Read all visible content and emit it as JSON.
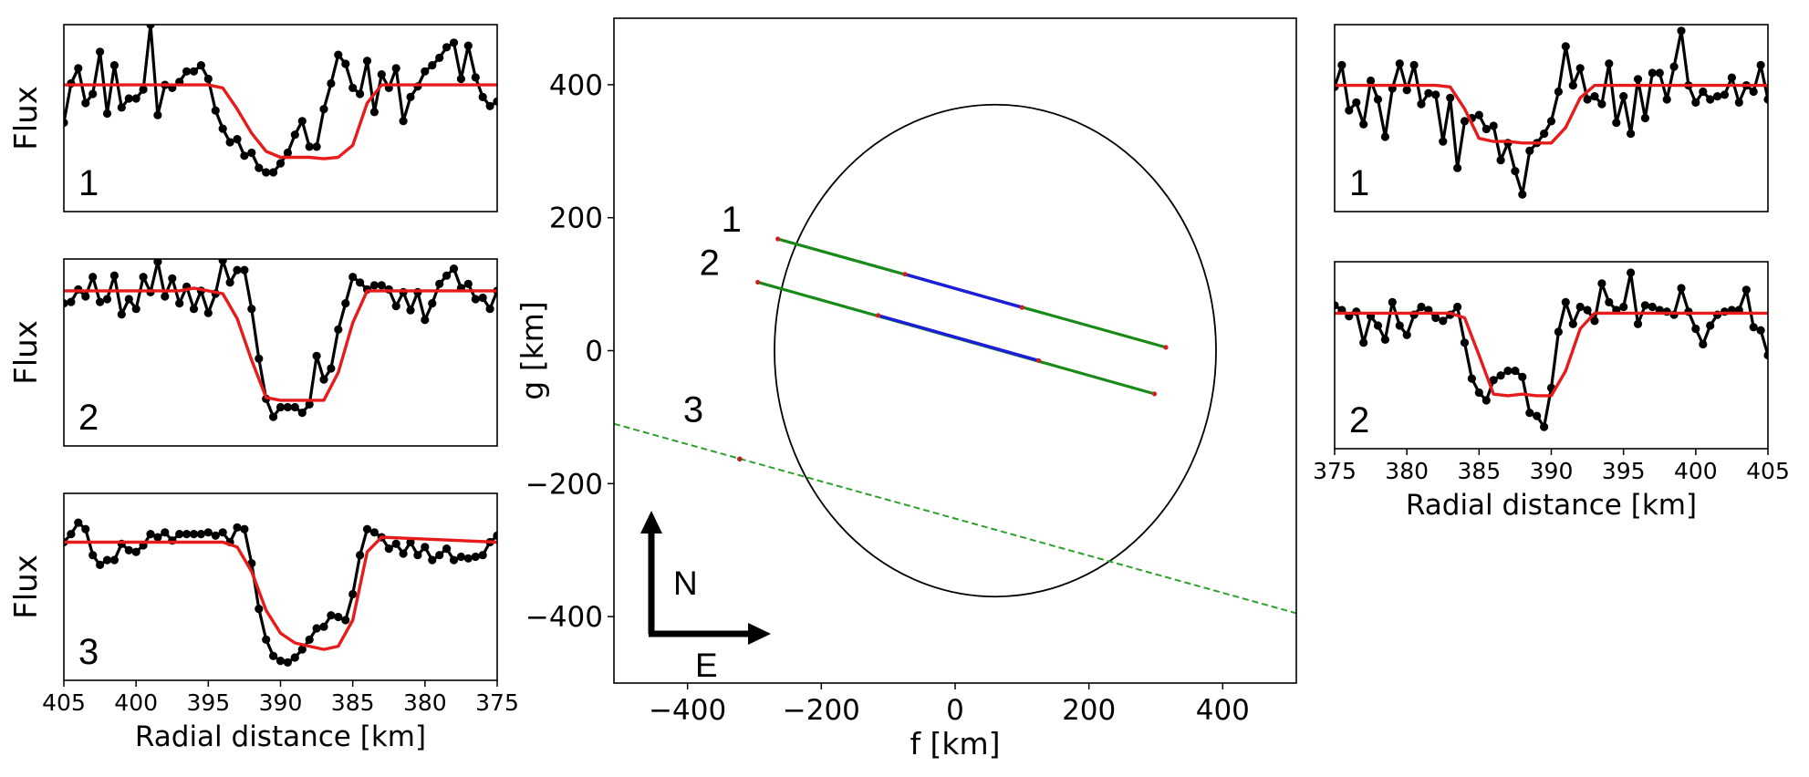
{
  "chart_data": [
    {
      "id": "left1",
      "type": "line",
      "xlabel": "",
      "ylabel": "Flux",
      "xlim": [
        405,
        375
      ],
      "ylim": [
        -0.12,
        1.12
      ],
      "x_ticks": [],
      "x_tick_labels": [],
      "panel_label": "1",
      "series": [
        {
          "role": "observed",
          "color": "#000000",
          "x": [
            405.0,
            404.5,
            404.0,
            403.5,
            403.0,
            402.5,
            402.0,
            401.5,
            401.0,
            400.5,
            400.0,
            399.5,
            399.0,
            398.5,
            398.0,
            397.5,
            397.0,
            396.5,
            396.0,
            395.5,
            395.0,
            394.5,
            394.0,
            393.5,
            393.0,
            392.5,
            392.0,
            391.5,
            391.0,
            390.5,
            390.0,
            389.5,
            389.0,
            388.5,
            388.0,
            387.5,
            387.0,
            386.5,
            386.0,
            385.5,
            385.0,
            384.5,
            384.0,
            383.5,
            383.0,
            382.5,
            382.0,
            381.5,
            381.0,
            380.5,
            380.0,
            379.5,
            379.0,
            378.5,
            378.0,
            377.5,
            377.0,
            376.5,
            376.0,
            375.5,
            375.0
          ],
          "y": [
            0.47,
            0.73,
            0.83,
            0.6,
            0.66,
            0.94,
            0.53,
            0.85,
            0.57,
            0.63,
            0.63,
            0.69,
            1.12,
            0.52,
            0.72,
            0.7,
            0.74,
            0.81,
            0.81,
            0.85,
            0.76,
            0.55,
            0.43,
            0.34,
            0.36,
            0.25,
            0.27,
            0.17,
            0.14,
            0.14,
            0.2,
            0.27,
            0.39,
            0.48,
            0.31,
            0.31,
            0.56,
            0.73,
            0.92,
            0.86,
            0.7,
            0.66,
            0.88,
            0.54,
            0.79,
            0.7,
            0.83,
            0.48,
            0.64,
            0.71,
            0.81,
            0.85,
            0.9,
            0.97,
            1.0,
            0.76,
            0.98,
            0.77,
            0.64,
            0.58,
            0.61
          ]
        },
        {
          "role": "model",
          "color": "#e81b1b",
          "x": [
            405,
            396,
            395,
            394,
            393,
            392,
            391,
            390,
            389,
            388,
            387,
            386,
            385,
            384,
            383,
            375
          ],
          "y": [
            0.72,
            0.72,
            0.72,
            0.7,
            0.56,
            0.4,
            0.28,
            0.24,
            0.24,
            0.24,
            0.23,
            0.24,
            0.32,
            0.6,
            0.72,
            0.72
          ]
        }
      ]
    },
    {
      "id": "left2",
      "type": "line",
      "xlabel": "",
      "ylabel": "Flux",
      "xlim": [
        405,
        375
      ],
      "ylim": [
        -0.15,
        1.2
      ],
      "x_ticks": [],
      "x_tick_labels": [],
      "panel_label": "2",
      "series": [
        {
          "role": "observed",
          "color": "#000000",
          "x": [
            405.0,
            404.5,
            404.0,
            403.5,
            403.0,
            402.5,
            402.0,
            401.5,
            401.0,
            400.5,
            400.0,
            399.5,
            399.0,
            398.5,
            398.0,
            397.5,
            397.0,
            396.5,
            396.0,
            395.5,
            395.0,
            394.5,
            394.0,
            393.5,
            393.0,
            392.5,
            392.0,
            391.5,
            391.0,
            390.5,
            390.0,
            389.5,
            389.0,
            388.5,
            388.0,
            387.5,
            387.0,
            386.5,
            386.0,
            385.5,
            385.0,
            384.5,
            384.0,
            383.5,
            383.0,
            382.5,
            382.0,
            381.5,
            381.0,
            380.5,
            380.0,
            379.5,
            379.0,
            378.5,
            378.0,
            377.5,
            377.0,
            376.5,
            376.0,
            375.5,
            375.0
          ],
          "y": [
            0.88,
            0.89,
            0.98,
            0.93,
            1.07,
            0.89,
            0.91,
            1.08,
            0.8,
            0.91,
            0.84,
            1.07,
            0.96,
            1.18,
            0.93,
            1.06,
            0.88,
            1.0,
            0.84,
            0.97,
            0.81,
            0.95,
            1.19,
            1.03,
            1.12,
            1.12,
            0.84,
            0.48,
            0.19,
            0.06,
            0.13,
            0.13,
            0.13,
            0.09,
            0.15,
            0.5,
            0.33,
            0.41,
            0.69,
            0.88,
            1.07,
            1.03,
            0.98,
            1.01,
            1.01,
            0.98,
            0.86,
            0.96,
            0.83,
            0.96,
            0.76,
            0.88,
            1.02,
            1.08,
            1.13,
            0.99,
            1.02,
            0.91,
            0.92,
            0.84,
            0.97
          ]
        },
        {
          "role": "model",
          "color": "#e81b1b",
          "x": [
            405,
            397,
            396,
            395,
            394,
            393,
            392,
            391,
            390,
            389,
            388,
            387,
            386,
            385,
            384,
            375
          ],
          "y": [
            0.97,
            0.97,
            0.99,
            0.97,
            0.95,
            0.77,
            0.47,
            0.2,
            0.18,
            0.18,
            0.18,
            0.18,
            0.38,
            0.74,
            0.97,
            0.97
          ]
        }
      ]
    },
    {
      "id": "left3",
      "type": "line",
      "xlabel": "Radial distance [km]",
      "ylabel": "Flux",
      "xlim": [
        405,
        375
      ],
      "ylim": [
        -0.05,
        1.1
      ],
      "x_ticks": [
        405,
        400,
        395,
        390,
        385,
        380,
        375
      ],
      "x_tick_labels": [
        "405",
        "400",
        "395",
        "390",
        "385",
        "380",
        "375"
      ],
      "panel_label": "3",
      "series": [
        {
          "role": "observed",
          "color": "#000000",
          "x": [
            405.0,
            404.5,
            404.0,
            403.5,
            403.0,
            402.5,
            402.0,
            401.5,
            401.0,
            400.5,
            400.0,
            399.5,
            399.0,
            398.5,
            398.0,
            397.5,
            397.0,
            396.5,
            396.0,
            395.5,
            395.0,
            394.5,
            394.0,
            393.5,
            393.0,
            392.5,
            392.0,
            391.5,
            391.0,
            390.5,
            390.0,
            389.5,
            389.0,
            388.5,
            388.0,
            387.5,
            387.0,
            386.5,
            386.0,
            385.5,
            385.0,
            384.5,
            384.0,
            383.5,
            383.0,
            382.5,
            382.0,
            381.5,
            381.0,
            380.5,
            380.0,
            379.5,
            379.0,
            378.5,
            378.0,
            377.5,
            377.0,
            376.5,
            376.0,
            375.5,
            375.0
          ],
          "y": [
            0.8,
            0.85,
            0.92,
            0.88,
            0.72,
            0.66,
            0.69,
            0.69,
            0.79,
            0.75,
            0.74,
            0.78,
            0.85,
            0.83,
            0.86,
            0.81,
            0.85,
            0.85,
            0.85,
            0.85,
            0.86,
            0.84,
            0.86,
            0.8,
            0.89,
            0.88,
            0.67,
            0.39,
            0.2,
            0.1,
            0.07,
            0.06,
            0.09,
            0.14,
            0.2,
            0.27,
            0.28,
            0.35,
            0.34,
            0.32,
            0.48,
            0.72,
            0.88,
            0.86,
            0.83,
            0.76,
            0.79,
            0.73,
            0.8,
            0.72,
            0.77,
            0.69,
            0.72,
            0.76,
            0.69,
            0.71,
            0.7,
            0.71,
            0.72,
            0.8,
            0.84
          ]
        },
        {
          "role": "model",
          "color": "#e81b1b",
          "x": [
            405,
            396,
            395,
            394,
            393,
            392,
            391,
            390,
            389,
            388,
            387,
            386,
            385,
            384,
            383,
            375
          ],
          "y": [
            0.8,
            0.8,
            0.8,
            0.8,
            0.77,
            0.62,
            0.38,
            0.24,
            0.18,
            0.16,
            0.14,
            0.16,
            0.32,
            0.74,
            0.83,
            0.8
          ]
        }
      ]
    },
    {
      "id": "right1",
      "type": "line",
      "xlabel": "",
      "ylabel": "",
      "xlim": [
        375,
        405
      ],
      "ylim": [
        -0.1,
        1.1
      ],
      "x_ticks": [],
      "x_tick_labels": [],
      "panel_label": "1",
      "series": [
        {
          "role": "observed",
          "color": "#000000",
          "x": [
            375.0,
            375.5,
            376.0,
            376.5,
            377.0,
            377.5,
            378.0,
            378.5,
            379.0,
            379.5,
            380.0,
            380.5,
            381.0,
            381.5,
            382.0,
            382.5,
            383.0,
            383.5,
            384.0,
            384.5,
            385.0,
            385.5,
            386.0,
            386.5,
            387.0,
            387.5,
            388.0,
            388.5,
            389.0,
            389.5,
            390.0,
            390.5,
            391.0,
            391.5,
            392.0,
            392.5,
            393.0,
            393.5,
            394.0,
            394.5,
            395.0,
            395.5,
            396.0,
            396.5,
            397.0,
            397.5,
            398.0,
            398.5,
            399.0,
            399.5,
            400.0,
            400.5,
            401.0,
            401.5,
            402.0,
            402.5,
            403.0,
            403.5,
            404.0,
            404.5,
            405.0
          ],
          "y": [
            0.7,
            0.84,
            0.55,
            0.6,
            0.46,
            0.74,
            0.62,
            0.38,
            0.69,
            0.85,
            0.68,
            0.84,
            0.59,
            0.66,
            0.65,
            0.35,
            0.63,
            0.18,
            0.48,
            0.5,
            0.52,
            0.43,
            0.45,
            0.23,
            0.34,
            0.16,
            0.01,
            0.29,
            0.34,
            0.4,
            0.48,
            0.67,
            0.96,
            0.71,
            0.82,
            0.62,
            0.64,
            0.59,
            0.85,
            0.47,
            0.64,
            0.4,
            0.75,
            0.5,
            0.79,
            0.79,
            0.62,
            0.83,
            1.06,
            0.71,
            0.6,
            0.67,
            0.62,
            0.64,
            0.65,
            0.76,
            0.6,
            0.71,
            0.67,
            0.84,
            0.62
          ]
        },
        {
          "role": "model",
          "color": "#e81b1b",
          "x": [
            375,
            382,
            383,
            384,
            385,
            386,
            387,
            388,
            389,
            390,
            391,
            392,
            393,
            405
          ],
          "y": [
            0.71,
            0.71,
            0.7,
            0.56,
            0.37,
            0.35,
            0.35,
            0.34,
            0.34,
            0.34,
            0.44,
            0.63,
            0.71,
            0.71
          ]
        }
      ]
    },
    {
      "id": "right2",
      "type": "line",
      "xlabel": "Radial distance [km]",
      "ylabel": "",
      "xlim": [
        375,
        405
      ],
      "ylim": [
        -0.1,
        1.1
      ],
      "x_ticks": [
        375,
        380,
        385,
        390,
        395,
        400,
        405
      ],
      "x_tick_labels": [
        "375",
        "380",
        "385",
        "390",
        "395",
        "400",
        "405"
      ],
      "panel_label": "2",
      "series": [
        {
          "role": "observed",
          "color": "#000000",
          "x": [
            375.0,
            375.5,
            376.0,
            376.5,
            377.0,
            377.5,
            378.0,
            378.5,
            379.0,
            379.5,
            380.0,
            380.5,
            381.0,
            381.5,
            382.0,
            382.5,
            383.0,
            383.5,
            384.0,
            384.5,
            385.0,
            385.5,
            386.0,
            386.5,
            387.0,
            387.5,
            388.0,
            388.5,
            389.0,
            389.5,
            390.0,
            390.5,
            391.0,
            391.5,
            392.0,
            392.5,
            393.0,
            393.5,
            394.0,
            394.5,
            395.0,
            395.5,
            396.0,
            396.5,
            397.0,
            397.5,
            398.0,
            398.5,
            399.0,
            399.5,
            400.0,
            400.5,
            401.0,
            401.5,
            402.0,
            402.5,
            403.0,
            403.5,
            404.0,
            404.5,
            405.0
          ],
          "y": [
            0.82,
            0.79,
            0.75,
            0.78,
            0.58,
            0.75,
            0.69,
            0.6,
            0.84,
            0.69,
            0.63,
            0.76,
            0.81,
            0.79,
            0.74,
            0.72,
            0.76,
            0.81,
            0.58,
            0.35,
            0.26,
            0.21,
            0.34,
            0.37,
            0.4,
            0.4,
            0.36,
            0.13,
            0.11,
            0.04,
            0.29,
            0.65,
            0.84,
            0.7,
            0.81,
            0.79,
            0.72,
            0.96,
            0.84,
            0.79,
            0.81,
            1.03,
            0.7,
            0.82,
            0.81,
            0.79,
            0.78,
            0.76,
            0.93,
            0.78,
            0.67,
            0.57,
            0.69,
            0.76,
            0.78,
            0.79,
            0.79,
            0.92,
            0.68,
            0.66,
            0.5
          ]
        },
        {
          "role": "model",
          "color": "#e81b1b",
          "x": [
            375,
            383,
            384,
            385,
            386,
            387,
            388,
            389,
            390,
            391,
            392,
            393,
            405
          ],
          "y": [
            0.77,
            0.77,
            0.74,
            0.5,
            0.25,
            0.24,
            0.25,
            0.24,
            0.24,
            0.4,
            0.67,
            0.77,
            0.77
          ]
        }
      ]
    },
    {
      "id": "center",
      "type": "line",
      "xlabel": "f [km]",
      "ylabel": "g [km]",
      "xlim": [
        -510,
        510
      ],
      "ylim": [
        -500,
        500
      ],
      "x_ticks": [
        -400,
        -200,
        0,
        200,
        400
      ],
      "x_tick_labels": [
        "−400",
        "−200",
        "0",
        "200",
        "400"
      ],
      "y_ticks": [
        400,
        200,
        0,
        -200,
        -400
      ],
      "y_tick_labels": [
        "400",
        "200",
        "0",
        "−200",
        "−400"
      ],
      "ellipse": {
        "center": [
          60,
          0
        ],
        "semi_axes": [
          330,
          370
        ],
        "color": "#000000"
      },
      "chords": [
        {
          "label": "1",
          "from": [
            -265,
            168
          ],
          "to": [
            315,
            5
          ],
          "inner_from": [
            -75,
            115
          ],
          "inner_to": [
            100,
            65
          ],
          "color": "#178a17",
          "inner_color": "#1c1cdc"
        },
        {
          "label": "2",
          "from": [
            -295,
            103
          ],
          "to": [
            298,
            -65
          ],
          "inner_from": [
            -115,
            53
          ],
          "inner_to": [
            125,
            -15
          ],
          "color": "#178a17",
          "inner_color": "#1c1cdc"
        },
        {
          "label": "3",
          "from": [
            -510,
            -110
          ],
          "to": [
            510,
            -395
          ],
          "style": "dashed",
          "color": "#2ea02e",
          "marker": [
            -322,
            -163
          ]
        }
      ],
      "compass": {
        "north_label": "N",
        "east_label": "E"
      }
    }
  ]
}
